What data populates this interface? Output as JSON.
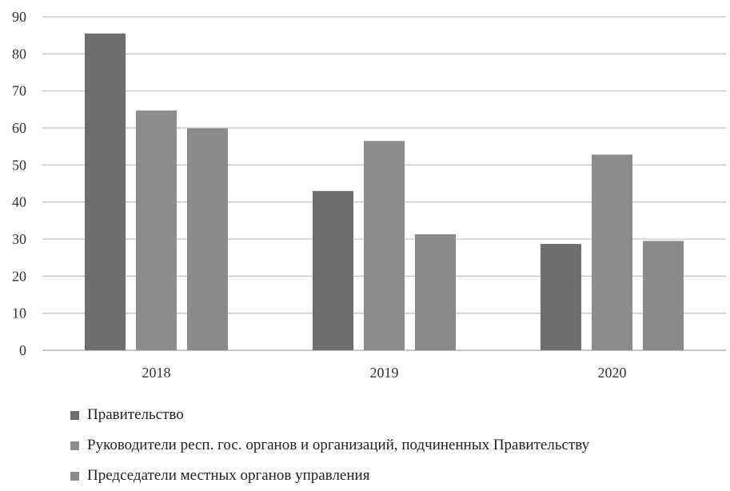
{
  "chart_data": {
    "type": "bar",
    "categories": [
      "2018",
      "2019",
      "2020"
    ],
    "series": [
      {
        "name": "Правительство",
        "color": "#6e6e6e",
        "values": [
          85.5,
          43,
          28.7
        ]
      },
      {
        "name": "Руководители респ. гос. органов и организаций, подчиненных Правительству",
        "color": "#8c8c8c",
        "values": [
          64.7,
          56.5,
          52.8
        ]
      },
      {
        "name": "Председатели местных органов управления",
        "color": "#8a8a8a",
        "values": [
          59.9,
          31.3,
          29.5
        ]
      }
    ],
    "ylim": [
      0,
      90
    ],
    "yticks": [
      0,
      10,
      20,
      30,
      40,
      50,
      60,
      70,
      80,
      90
    ],
    "grid": true,
    "legend_position": "bottom-left"
  }
}
